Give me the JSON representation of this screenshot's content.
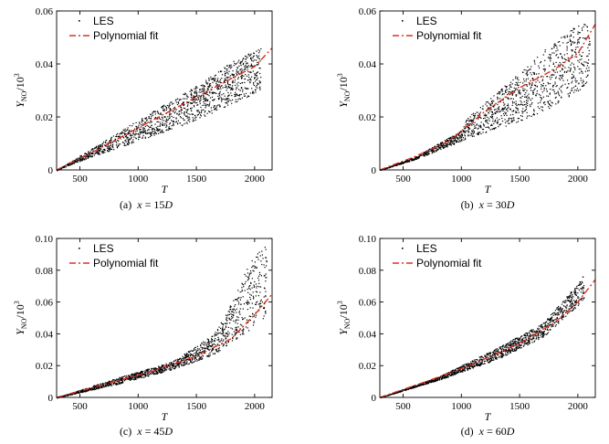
{
  "chart_data": [
    {
      "type": "scatter",
      "panel": "a",
      "caption": "(a)  x = 15D",
      "xlabel": "T",
      "ylabel": "Y_NO/10^3",
      "xlim": [
        300,
        2150
      ],
      "ylim": [
        0,
        0.06
      ],
      "xticks": [
        500,
        1000,
        1500,
        2000
      ],
      "yticks": [
        0,
        0.02,
        0.04,
        0.06
      ],
      "ytick_labels": [
        "0",
        "0.02",
        "0.04",
        "0.06"
      ],
      "legend": [
        "LES",
        "Polynomial fit"
      ],
      "series": [
        {
          "name": "LES",
          "kind": "scatter-cloud",
          "x": [
            300,
            500,
            1000,
            1500,
            1800,
            2050
          ],
          "y_low": [
            0,
            0.0035,
            0.011,
            0.019,
            0.025,
            0.03
          ],
          "y_high": [
            0,
            0.0055,
            0.019,
            0.032,
            0.041,
            0.046
          ]
        },
        {
          "name": "Polynomial fit",
          "kind": "line",
          "x": [
            300,
            600,
            900,
            1200,
            1500,
            1800,
            2000,
            2150
          ],
          "y": [
            0,
            0.0065,
            0.0135,
            0.0205,
            0.0275,
            0.0345,
            0.039,
            0.046
          ]
        }
      ]
    },
    {
      "type": "scatter",
      "panel": "b",
      "caption": "(b)  x = 30D",
      "xlabel": "T",
      "ylabel": "Y_NO/10^3",
      "xlim": [
        300,
        2150
      ],
      "ylim": [
        0,
        0.06
      ],
      "xticks": [
        500,
        1000,
        1500,
        2000
      ],
      "yticks": [
        0,
        0.02,
        0.04,
        0.06
      ],
      "ytick_labels": [
        "0",
        "0.02",
        "0.04",
        "0.06"
      ],
      "legend": [
        "LES",
        "Polynomial fit"
      ],
      "series": [
        {
          "name": "LES",
          "kind": "scatter-cloud",
          "x": [
            300,
            600,
            1000,
            1050,
            1400,
            1700,
            2000,
            2100
          ],
          "y_low": [
            0,
            0.004,
            0.011,
            0.012,
            0.017,
            0.022,
            0.03,
            0.033
          ],
          "y_high": [
            0,
            0.005,
            0.015,
            0.02,
            0.033,
            0.045,
            0.055,
            0.056
          ]
        },
        {
          "name": "Polynomial fit",
          "kind": "line",
          "x": [
            300,
            600,
            900,
            1200,
            1500,
            1800,
            2000,
            2150
          ],
          "y": [
            0,
            0.005,
            0.011,
            0.022,
            0.031,
            0.038,
            0.044,
            0.055
          ]
        }
      ]
    },
    {
      "type": "scatter",
      "panel": "c",
      "caption": "(c)  x = 45D",
      "xlabel": "T",
      "ylabel": "Y_NO/10^3",
      "xlim": [
        300,
        2150
      ],
      "ylim": [
        0,
        0.1
      ],
      "xticks": [
        500,
        1000,
        1500,
        2000
      ],
      "yticks": [
        0,
        0.02,
        0.04,
        0.06,
        0.08,
        0.1
      ],
      "ytick_labels": [
        "0",
        "0.02",
        "0.04",
        "0.06",
        "0.08",
        "0.10"
      ],
      "legend": [
        "LES",
        "Polynomial fit"
      ],
      "series": [
        {
          "name": "LES",
          "kind": "scatter-cloud",
          "x": [
            300,
            800,
            1300,
            1650,
            1800,
            2000,
            2100
          ],
          "y_low": [
            0,
            0.008,
            0.018,
            0.027,
            0.035,
            0.045,
            0.05
          ],
          "y_high": [
            0,
            0.012,
            0.023,
            0.04,
            0.06,
            0.092,
            0.096
          ]
        },
        {
          "name": "Polynomial fit",
          "kind": "line",
          "x": [
            300,
            700,
            1100,
            1500,
            1800,
            2000,
            2150
          ],
          "y": [
            0,
            0.008,
            0.016,
            0.026,
            0.037,
            0.052,
            0.065
          ]
        }
      ]
    },
    {
      "type": "scatter",
      "panel": "d",
      "caption": "(d)  x = 60D",
      "xlabel": "T",
      "ylabel": "Y_NO/10^3",
      "xlim": [
        300,
        2150
      ],
      "ylim": [
        0,
        0.1
      ],
      "xticks": [
        500,
        1000,
        1500,
        2000
      ],
      "yticks": [
        0,
        0.02,
        0.04,
        0.06,
        0.08,
        0.1
      ],
      "ytick_labels": [
        "0",
        "0.02",
        "0.04",
        "0.06",
        "0.08",
        "0.10"
      ],
      "legend": [
        "LES",
        "Polynomial fit"
      ],
      "series": [
        {
          "name": "LES",
          "kind": "scatter-cloud",
          "x": [
            300,
            800,
            1300,
            1700,
            2000,
            2050
          ],
          "y_low": [
            0,
            0.011,
            0.024,
            0.038,
            0.058,
            0.062
          ],
          "y_high": [
            0,
            0.013,
            0.031,
            0.047,
            0.072,
            0.078
          ]
        },
        {
          "name": "Polynomial fit",
          "kind": "line",
          "x": [
            300,
            700,
            1100,
            1500,
            1800,
            2000,
            2150
          ],
          "y": [
            0,
            0.01,
            0.021,
            0.034,
            0.047,
            0.06,
            0.074
          ]
        }
      ]
    }
  ],
  "colors": {
    "scatter": "#000000",
    "fit": "#e03020",
    "axis": "#000000"
  }
}
